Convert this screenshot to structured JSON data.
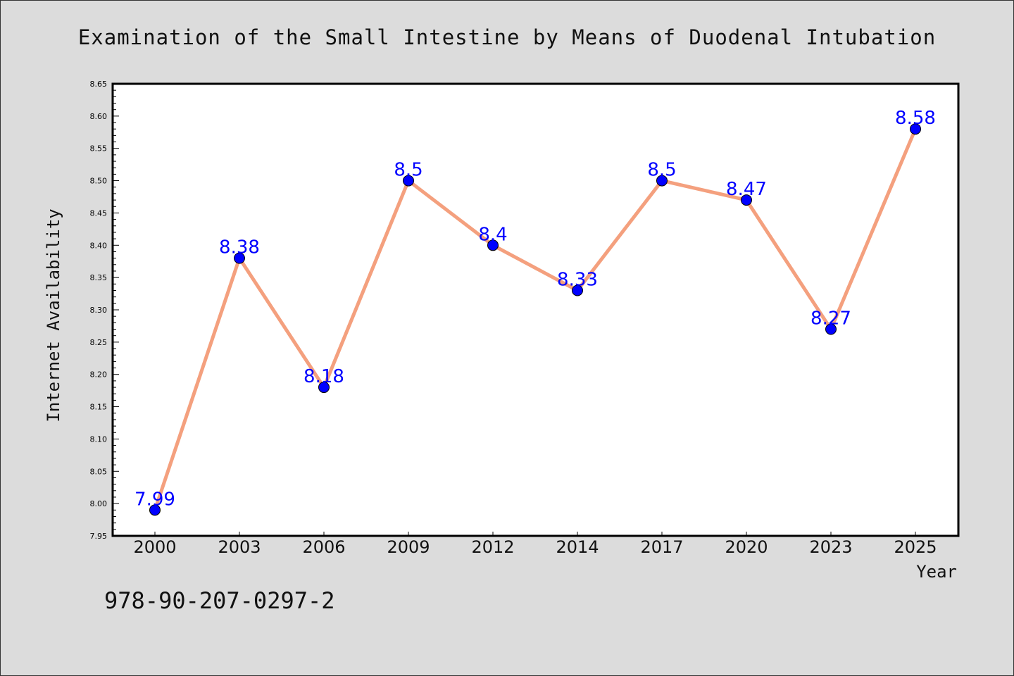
{
  "chart_data": {
    "type": "line",
    "title": "Examination of the Small Intestine by Means of Duodenal Intubation",
    "xlabel": "Year",
    "ylabel": "Internet Availability",
    "categories": [
      "2000",
      "2003",
      "2006",
      "2009",
      "2012",
      "2014",
      "2017",
      "2020",
      "2023",
      "2025"
    ],
    "series": [
      {
        "values": [
          7.99,
          8.38,
          8.18,
          8.5,
          8.4,
          8.33,
          8.5,
          8.47,
          8.27,
          8.58
        ]
      }
    ],
    "data_labels": [
      "7.99",
      "8.38",
      "8.18",
      "8.5",
      "8.4",
      "8.33",
      "8.5",
      "8.47",
      "8.27",
      "8.58"
    ],
    "ylim": [
      7.95,
      8.65
    ],
    "yticks": [
      "7.95",
      "8.00",
      "8.05",
      "8.10",
      "8.15",
      "8.20",
      "8.25",
      "8.30",
      "8.35",
      "8.40",
      "8.45",
      "8.50",
      "8.55",
      "8.60",
      "8.65"
    ],
    "grid": false,
    "legend": "none",
    "colors": {
      "line": "#f4a07e",
      "marker": "#0000ff",
      "label": "#0000ff",
      "background": "#dcdcdc",
      "plot_area": "#ffffff"
    }
  },
  "footer": {
    "isbn": "978-90-207-0297-2"
  }
}
